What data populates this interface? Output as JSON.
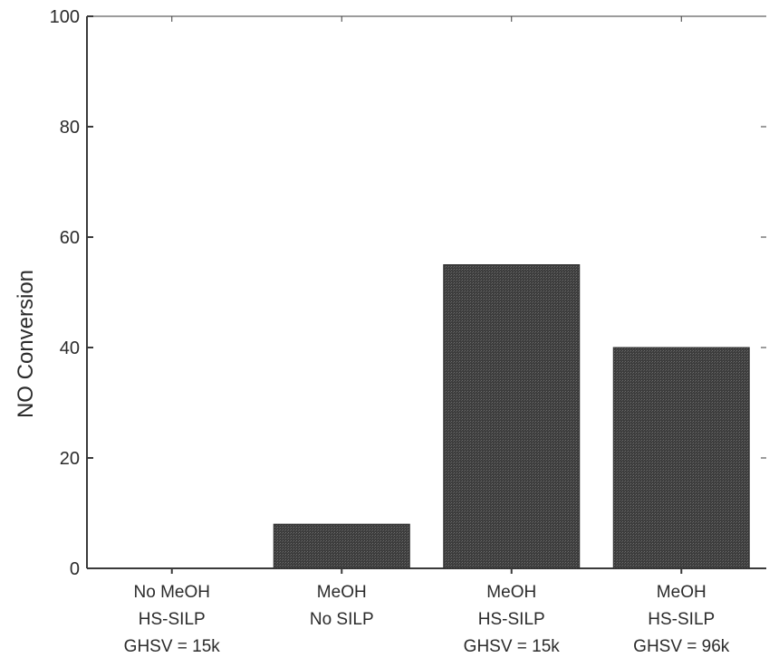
{
  "chart_data": {
    "type": "bar",
    "categories": [
      [
        "No MeOH",
        "HS-SILP",
        "GHSV = 15k"
      ],
      [
        "MeOH",
        "No SILP"
      ],
      [
        "MeOH",
        "HS-SILP",
        "GHSV = 15k"
      ],
      [
        "MeOH",
        "HS-SILP",
        "GHSV = 96k"
      ]
    ],
    "values": [
      0,
      8,
      55,
      40
    ],
    "title": "",
    "xlabel": "",
    "ylabel": "NO Conversion",
    "ylim": [
      0,
      100
    ],
    "yticks": [
      0,
      20,
      40,
      60,
      80,
      100
    ],
    "grid": false,
    "bar_color": "#4a4a4a",
    "axis_color": "#3a3a3a"
  }
}
